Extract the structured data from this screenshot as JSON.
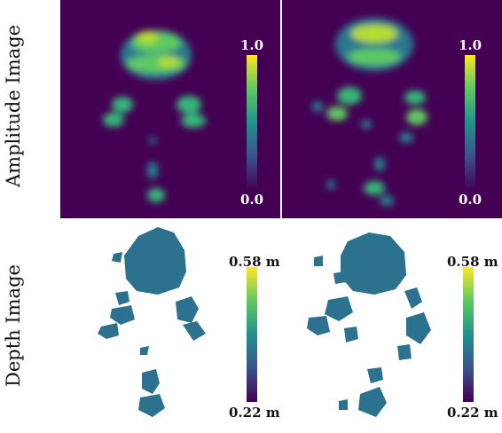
{
  "rows": [
    {
      "label": "Amplitude Image",
      "colorbar": {
        "max": "1.0",
        "min": "0.0"
      }
    },
    {
      "label": "Depth Image",
      "colorbar": {
        "max": "0.58 m",
        "min": "0.22 m"
      }
    }
  ],
  "colormap": "viridis",
  "colors": {
    "background_dark": "#440154",
    "depth_fill": "#2c718e",
    "bright": "#fde725",
    "mid": "#5ec962"
  }
}
